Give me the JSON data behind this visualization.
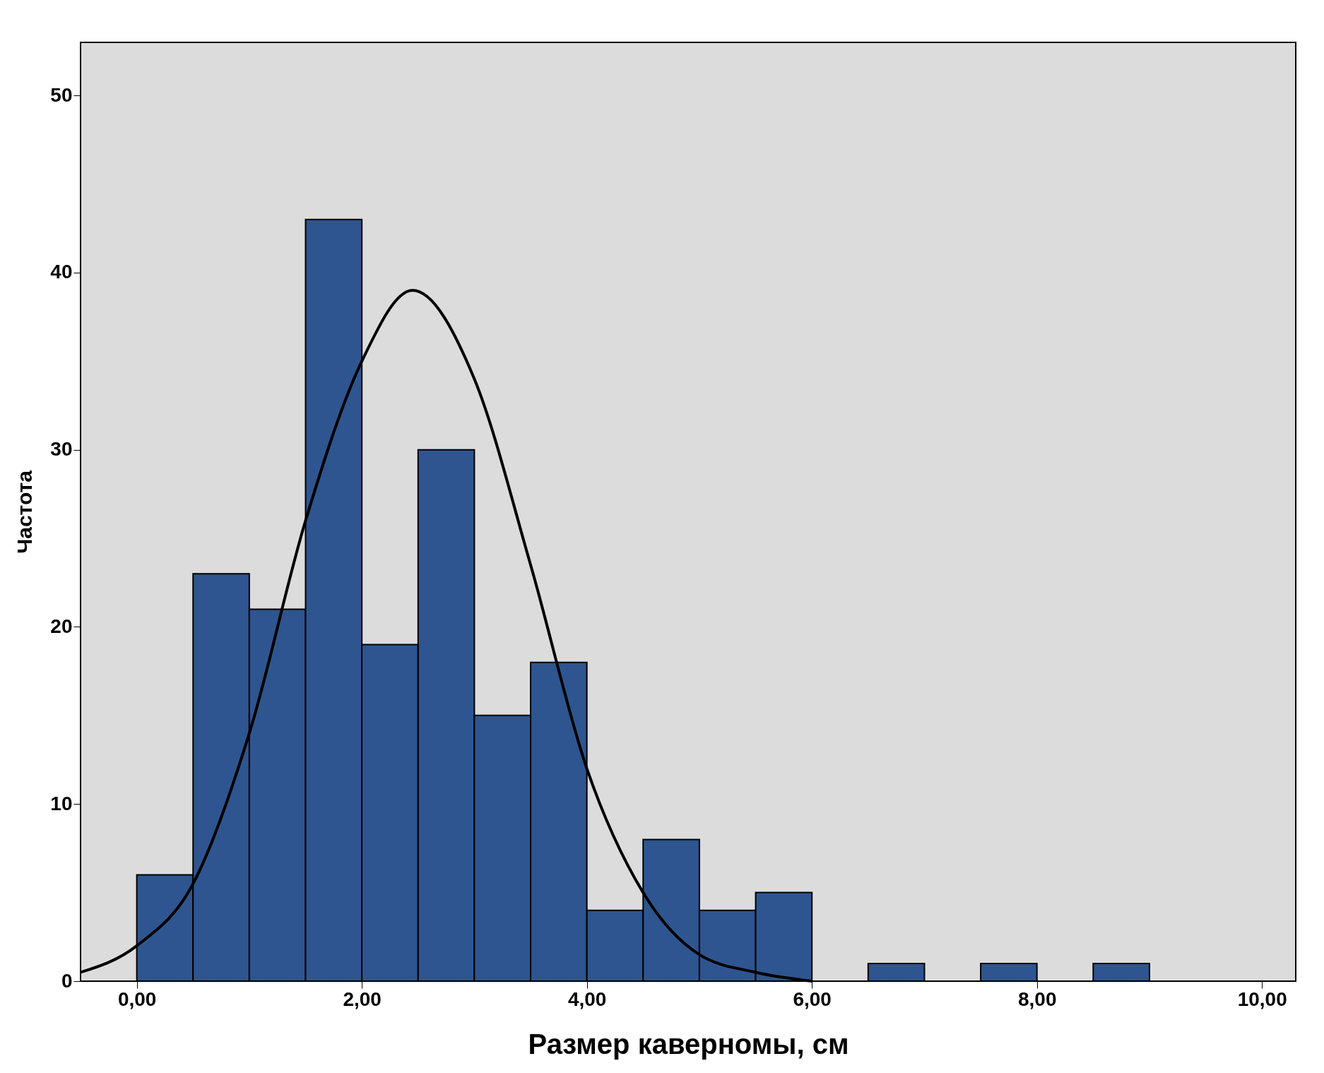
{
  "chart_data": {
    "type": "histogram",
    "xlabel": "Размер каверномы, см",
    "ylabel": "Частота",
    "bins": [
      0,
      0.5,
      1,
      1.5,
      2,
      2.5,
      3,
      3.5,
      4,
      4.5,
      5,
      5.5,
      6,
      6.5,
      7,
      7.5,
      8,
      8.5,
      9
    ],
    "values": [
      6,
      23,
      21,
      43,
      19,
      30,
      15,
      18,
      4,
      8,
      4,
      5,
      0,
      1,
      0,
      1,
      0,
      1
    ],
    "color": "#2e5590",
    "series": [
      {
        "type": "line",
        "color": "#000000",
        "x": [
          -0.5,
          0,
          0.5,
          1,
          1.5,
          2,
          2.45,
          3,
          3.5,
          4,
          4.5,
          5,
          5.5,
          6
        ],
        "values": [
          0.5,
          2,
          5.5,
          14,
          26,
          35,
          39,
          34,
          23.5,
          12,
          5,
          1.5,
          0.5,
          0
        ]
      }
    ],
    "xlim": [
      -0.5,
      10.3
    ],
    "ylim": [
      0,
      53
    ],
    "xticks": [
      {
        "value": 0,
        "label": "0,00"
      },
      {
        "value": 2,
        "label": "2,00"
      },
      {
        "value": 4,
        "label": "4,00"
      },
      {
        "value": 6,
        "label": "6,00"
      },
      {
        "value": 8,
        "label": "8,00"
      },
      {
        "value": 10,
        "label": "10,00"
      }
    ],
    "yticks": [
      0,
      10,
      20,
      30,
      40,
      50
    ],
    "grid": false
  }
}
